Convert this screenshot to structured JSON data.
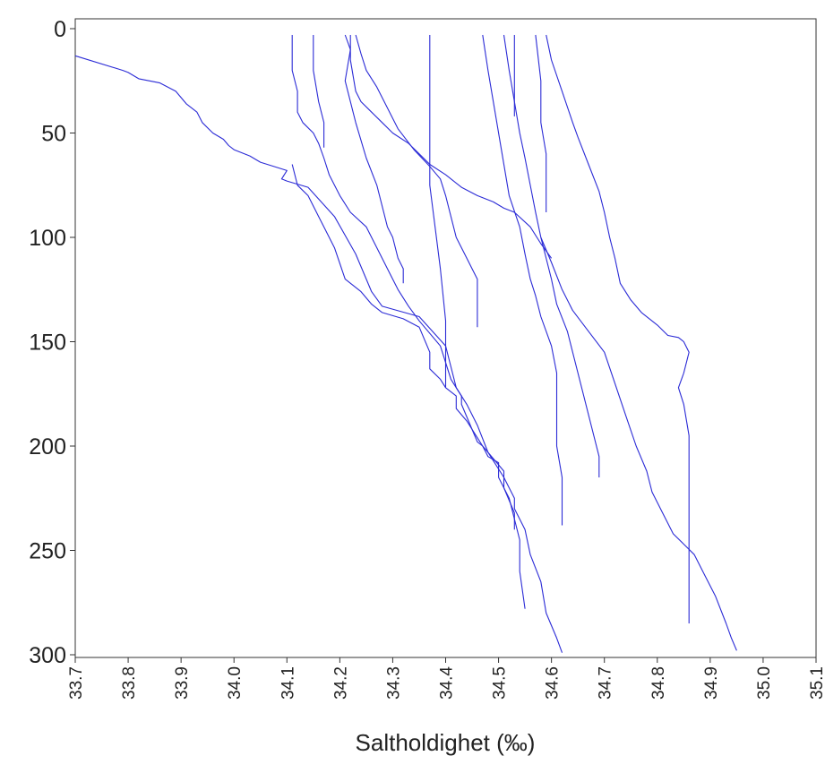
{
  "chart_data": {
    "type": "line",
    "title": "",
    "xlabel": "Saltholdighet (‰)",
    "ylabel": "",
    "xlim": [
      33.7,
      35.1
    ],
    "ylim": [
      300,
      0
    ],
    "y_inverted": true,
    "xticks": [
      "33.7",
      "33.8",
      "33.9",
      "34.0",
      "34.1",
      "34.2",
      "34.3",
      "34.4",
      "34.5",
      "34.6",
      "34.7",
      "34.8",
      "34.9",
      "35.0",
      "35.1"
    ],
    "yticks": [
      "0",
      "50",
      "100",
      "150",
      "200",
      "250",
      "300"
    ],
    "grid": false,
    "legend": "none",
    "line_color": "#2b2bd6",
    "series": [
      {
        "x": [
          33.7,
          33.79,
          33.8,
          33.82,
          33.86,
          33.89,
          33.9,
          33.91,
          33.93,
          33.94,
          33.96,
          33.98,
          33.99,
          34.0,
          34.03,
          34.05,
          34.1,
          34.09,
          34.1,
          34.14,
          34.19,
          34.23,
          34.26,
          34.28,
          34.35,
          34.4,
          34.42,
          34.44,
          34.46,
          34.48,
          34.49,
          34.51,
          34.53,
          34.53,
          34.55,
          34.56,
          34.58,
          34.59,
          34.61,
          34.62
        ],
        "y": [
          13,
          20,
          21,
          24,
          26,
          30,
          33,
          36,
          40,
          45,
          50,
          53,
          56,
          58,
          61,
          64,
          68,
          72,
          73,
          76,
          90,
          108,
          126,
          133,
          138,
          152,
          172,
          180,
          190,
          203,
          207,
          215,
          225,
          230,
          240,
          252,
          265,
          280,
          292,
          299
        ]
      },
      {
        "x": [
          34.11,
          34.12,
          34.14,
          34.16,
          34.19,
          34.21,
          34.24,
          34.26,
          34.28,
          34.32,
          34.35,
          34.37,
          34.37,
          34.39,
          34.4,
          34.42,
          34.42,
          34.44,
          34.46,
          34.47,
          34.48,
          34.5,
          34.5,
          34.52,
          34.53,
          34.54,
          34.54,
          34.55
        ],
        "y": [
          65,
          75,
          80,
          90,
          105,
          120,
          126,
          132,
          136,
          139,
          143,
          155,
          163,
          168,
          172,
          176,
          182,
          188,
          196,
          200,
          205,
          208,
          215,
          225,
          235,
          245,
          260,
          278
        ]
      },
      {
        "x": [
          34.11,
          34.11,
          34.12,
          34.12,
          34.13,
          34.15,
          34.16,
          34.17,
          34.18,
          34.2,
          34.22,
          34.25,
          34.27,
          34.29,
          34.31,
          34.33,
          34.35,
          34.37,
          34.39,
          34.4,
          34.41,
          34.42,
          34.43,
          34.43,
          34.44,
          34.45,
          34.46,
          34.47,
          34.48,
          34.49,
          34.5,
          34.51,
          34.51,
          34.52,
          34.53,
          34.53
        ],
        "y": [
          3,
          20,
          30,
          40,
          45,
          50,
          55,
          62,
          70,
          80,
          88,
          95,
          105,
          115,
          125,
          133,
          140,
          146,
          152,
          160,
          168,
          172,
          176,
          180,
          186,
          192,
          198,
          200,
          203,
          206,
          209,
          212,
          220,
          226,
          232,
          240
        ]
      },
      {
        "x": [
          34.15,
          34.15,
          34.16,
          34.17,
          34.17
        ],
        "y": [
          3,
          20,
          35,
          45,
          57
        ]
      },
      {
        "x": [
          34.21,
          34.22,
          34.21,
          34.23,
          34.25,
          34.27,
          34.28,
          34.29,
          34.3,
          34.31,
          34.32,
          34.32
        ],
        "y": [
          3,
          10,
          25,
          45,
          62,
          75,
          85,
          95,
          100,
          110,
          115,
          122
        ]
      },
      {
        "x": [
          34.22,
          34.22,
          34.23,
          34.24,
          34.26,
          34.28,
          34.3,
          34.33,
          34.35,
          34.37,
          34.4,
          34.43,
          34.46,
          34.49,
          34.51,
          34.53,
          34.56,
          34.58,
          34.6
        ],
        "y": [
          3,
          15,
          30,
          35,
          40,
          45,
          50,
          55,
          60,
          65,
          70,
          76,
          80,
          83,
          86,
          88,
          95,
          103,
          110
        ]
      },
      {
        "x": [
          34.23,
          34.24,
          34.25,
          34.27,
          34.29,
          34.31,
          34.34,
          34.37,
          34.39,
          34.4,
          34.41,
          34.42,
          34.43,
          34.44,
          34.45,
          34.46,
          34.46,
          34.46
        ],
        "y": [
          3,
          12,
          20,
          28,
          38,
          48,
          58,
          66,
          72,
          80,
          90,
          100,
          105,
          110,
          115,
          120,
          130,
          143
        ]
      },
      {
        "x": [
          34.37,
          34.37,
          34.37,
          34.37,
          34.37,
          34.38,
          34.39,
          34.4,
          34.4,
          34.4,
          34.4
        ],
        "y": [
          3,
          20,
          40,
          55,
          75,
          95,
          115,
          140,
          155,
          165,
          172
        ]
      },
      {
        "x": [
          34.47,
          34.48,
          34.49,
          34.5,
          34.51,
          34.52,
          34.54,
          34.55,
          34.56,
          34.57,
          34.58,
          34.6,
          34.61,
          34.61,
          34.61,
          34.62,
          34.62,
          34.62
        ],
        "y": [
          3,
          20,
          35,
          50,
          65,
          80,
          95,
          108,
          120,
          128,
          138,
          152,
          165,
          180,
          200,
          215,
          230,
          238
        ]
      },
      {
        "x": [
          34.51,
          34.52,
          34.53,
          34.54,
          34.55,
          34.56,
          34.57,
          34.58,
          34.59,
          34.6,
          34.61,
          34.63,
          34.64,
          34.65,
          34.66,
          34.67,
          34.68,
          34.69,
          34.69
        ],
        "y": [
          3,
          20,
          35,
          50,
          62,
          75,
          88,
          100,
          110,
          120,
          132,
          145,
          155,
          165,
          175,
          185,
          195,
          205,
          215
        ]
      },
      {
        "x": [
          34.53,
          34.53,
          34.53,
          34.53,
          34.53
        ],
        "y": [
          3,
          15,
          25,
          35,
          42
        ]
      },
      {
        "x": [
          34.57,
          34.58,
          34.58,
          34.59,
          34.59,
          34.59
        ],
        "y": [
          3,
          25,
          45,
          60,
          75,
          88
        ]
      },
      {
        "x": [
          34.59,
          34.6,
          34.62,
          34.64,
          34.65,
          34.67,
          34.69,
          34.7,
          34.71,
          34.72,
          34.73,
          34.75,
          34.77,
          34.8,
          34.82,
          34.84,
          34.85,
          34.86,
          34.85,
          34.84,
          34.85,
          34.86,
          34.86,
          34.86
        ],
        "y": [
          3,
          15,
          30,
          45,
          52,
          65,
          78,
          88,
          100,
          110,
          122,
          130,
          136,
          142,
          147,
          148,
          150,
          155,
          165,
          172,
          180,
          195,
          215,
          285
        ]
      },
      {
        "x": [
          34.58,
          34.6,
          34.62,
          34.64,
          34.67,
          34.7,
          34.72,
          34.74,
          34.76,
          34.78,
          34.79,
          34.81,
          34.83,
          34.85,
          34.87,
          34.89,
          34.91,
          34.93,
          34.94,
          34.95
        ],
        "y": [
          100,
          112,
          125,
          135,
          145,
          155,
          170,
          185,
          200,
          212,
          222,
          232,
          242,
          247,
          252,
          262,
          272,
          285,
          292,
          298
        ]
      }
    ]
  }
}
